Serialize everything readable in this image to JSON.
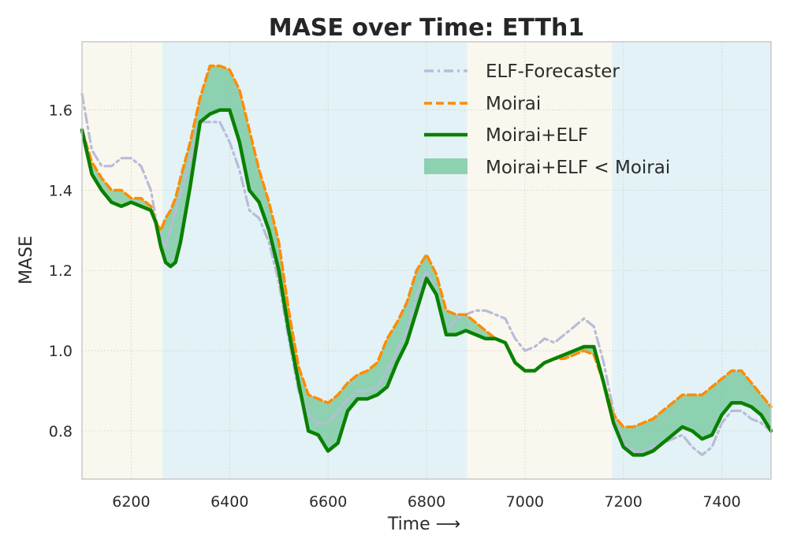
{
  "chart_data": {
    "type": "line",
    "title": "MASE over Time: ETTh1",
    "xlabel": "Time ⟶",
    "ylabel": "MASE",
    "xlim": [
      6100,
      7500
    ],
    "ylim": [
      0.68,
      1.77
    ],
    "xticks": [
      6200,
      6400,
      6600,
      6800,
      7000,
      7200,
      7400
    ],
    "xtick_labels": [
      "6200",
      "6400",
      "6600",
      "6800",
      "7000",
      "7200",
      "7400"
    ],
    "yticks": [
      0.8,
      1.0,
      1.2,
      1.4,
      1.6
    ],
    "ytick_labels": [
      "0.8",
      "1.0",
      "1.2",
      "1.4",
      "1.6"
    ],
    "grid": true,
    "legend_position": "top-right",
    "background_regions": [
      {
        "x0": 6100,
        "x1": 6263,
        "color": "#faf8ee"
      },
      {
        "x0": 6263,
        "x1": 6883,
        "color": "#e3f2f6"
      },
      {
        "x0": 6883,
        "x1": 7177,
        "color": "#faf8ee"
      },
      {
        "x0": 7177,
        "x1": 7500,
        "color": "#e3f2f6"
      }
    ],
    "x": [
      6100,
      6120,
      6140,
      6160,
      6180,
      6200,
      6220,
      6240,
      6250,
      6260,
      6270,
      6280,
      6290,
      6300,
      6320,
      6340,
      6360,
      6380,
      6400,
      6420,
      6440,
      6460,
      6480,
      6500,
      6520,
      6540,
      6560,
      6580,
      6600,
      6620,
      6640,
      6660,
      6680,
      6700,
      6720,
      6740,
      6760,
      6780,
      6800,
      6820,
      6840,
      6860,
      6880,
      6900,
      6920,
      6940,
      6960,
      6980,
      7000,
      7020,
      7040,
      7060,
      7080,
      7100,
      7120,
      7140,
      7160,
      7180,
      7200,
      7220,
      7240,
      7260,
      7280,
      7300,
      7320,
      7340,
      7360,
      7380,
      7400,
      7420,
      7440,
      7460,
      7480,
      7500
    ],
    "series": [
      {
        "name": "ELF-Forecaster",
        "style": "dashdot",
        "color": "#b8bcd8",
        "values": [
          1.64,
          1.5,
          1.46,
          1.46,
          1.48,
          1.48,
          1.46,
          1.4,
          1.33,
          1.28,
          1.26,
          1.3,
          1.35,
          1.39,
          1.48,
          1.57,
          1.57,
          1.57,
          1.52,
          1.45,
          1.35,
          1.33,
          1.27,
          1.17,
          1.03,
          0.9,
          0.84,
          0.82,
          0.82,
          0.85,
          0.88,
          0.9,
          0.9,
          0.91,
          0.95,
          1.0,
          1.05,
          1.14,
          1.2,
          1.14,
          1.05,
          1.08,
          1.09,
          1.1,
          1.1,
          1.09,
          1.08,
          1.03,
          1.0,
          1.01,
          1.03,
          1.02,
          1.04,
          1.06,
          1.08,
          1.06,
          0.97,
          0.85,
          0.77,
          0.75,
          0.75,
          0.76,
          0.77,
          0.78,
          0.79,
          0.76,
          0.74,
          0.76,
          0.82,
          0.85,
          0.85,
          0.83,
          0.82,
          0.8
        ]
      },
      {
        "name": "Moirai",
        "style": "dashed",
        "color": "#ff8c00",
        "values": [
          1.55,
          1.47,
          1.43,
          1.4,
          1.4,
          1.38,
          1.38,
          1.36,
          1.32,
          1.3,
          1.33,
          1.35,
          1.38,
          1.43,
          1.52,
          1.63,
          1.71,
          1.71,
          1.7,
          1.65,
          1.55,
          1.45,
          1.37,
          1.27,
          1.1,
          0.96,
          0.89,
          0.88,
          0.87,
          0.89,
          0.92,
          0.94,
          0.95,
          0.97,
          1.03,
          1.07,
          1.12,
          1.2,
          1.24,
          1.19,
          1.1,
          1.09,
          1.09,
          1.07,
          1.05,
          1.03,
          1.02,
          0.97,
          0.95,
          0.95,
          0.97,
          0.98,
          0.98,
          0.99,
          1.0,
          0.99,
          0.92,
          0.84,
          0.81,
          0.81,
          0.82,
          0.83,
          0.85,
          0.87,
          0.89,
          0.89,
          0.89,
          0.91,
          0.93,
          0.95,
          0.95,
          0.92,
          0.89,
          0.86
        ]
      },
      {
        "name": "Moirai+ELF",
        "style": "solid",
        "color": "#0a8000",
        "values": [
          1.55,
          1.44,
          1.4,
          1.37,
          1.36,
          1.37,
          1.36,
          1.35,
          1.32,
          1.26,
          1.22,
          1.21,
          1.22,
          1.27,
          1.41,
          1.57,
          1.59,
          1.6,
          1.6,
          1.52,
          1.4,
          1.37,
          1.3,
          1.2,
          1.05,
          0.92,
          0.8,
          0.79,
          0.75,
          0.77,
          0.85,
          0.88,
          0.88,
          0.89,
          0.91,
          0.97,
          1.02,
          1.1,
          1.18,
          1.14,
          1.04,
          1.04,
          1.05,
          1.04,
          1.03,
          1.03,
          1.02,
          0.97,
          0.95,
          0.95,
          0.97,
          0.98,
          0.99,
          1.0,
          1.01,
          1.01,
          0.92,
          0.82,
          0.76,
          0.74,
          0.74,
          0.75,
          0.77,
          0.79,
          0.81,
          0.8,
          0.78,
          0.79,
          0.84,
          0.87,
          0.87,
          0.86,
          0.84,
          0.8
        ]
      }
    ],
    "fill_label": "Moirai+ELF < Moirai",
    "fill_color": "#5fbf8c",
    "legend": [
      "ELF-Forecaster",
      "Moirai",
      "Moirai+ELF",
      "Moirai+ELF < Moirai"
    ]
  }
}
